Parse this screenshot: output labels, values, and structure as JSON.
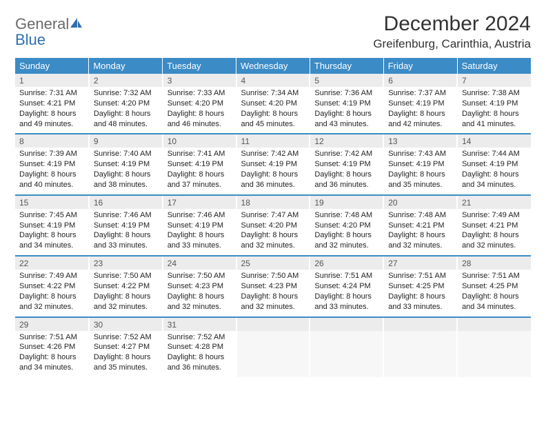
{
  "brand": {
    "general": "General",
    "blue": "Blue"
  },
  "title": "December 2024",
  "location": "Greifenburg, Carinthia, Austria",
  "colors": {
    "header_bg": "#3b8bc6",
    "header_text": "#ffffff",
    "daynum_bg": "#ececec",
    "daynum_text": "#555555",
    "body_text": "#222222",
    "accent_rule": "#3b8bc6",
    "logo_gray": "#6a6a6a",
    "logo_blue": "#2f6fad"
  },
  "typography": {
    "title_fontsize": 30,
    "location_fontsize": 17,
    "header_fontsize": 13,
    "daynum_fontsize": 12,
    "cell_fontsize": 11
  },
  "weekdays": [
    "Sunday",
    "Monday",
    "Tuesday",
    "Wednesday",
    "Thursday",
    "Friday",
    "Saturday"
  ],
  "weeks": [
    [
      {
        "n": "1",
        "sr": "Sunrise: 7:31 AM",
        "ss": "Sunset: 4:21 PM",
        "d1": "Daylight: 8 hours",
        "d2": "and 49 minutes."
      },
      {
        "n": "2",
        "sr": "Sunrise: 7:32 AM",
        "ss": "Sunset: 4:20 PM",
        "d1": "Daylight: 8 hours",
        "d2": "and 48 minutes."
      },
      {
        "n": "3",
        "sr": "Sunrise: 7:33 AM",
        "ss": "Sunset: 4:20 PM",
        "d1": "Daylight: 8 hours",
        "d2": "and 46 minutes."
      },
      {
        "n": "4",
        "sr": "Sunrise: 7:34 AM",
        "ss": "Sunset: 4:20 PM",
        "d1": "Daylight: 8 hours",
        "d2": "and 45 minutes."
      },
      {
        "n": "5",
        "sr": "Sunrise: 7:36 AM",
        "ss": "Sunset: 4:19 PM",
        "d1": "Daylight: 8 hours",
        "d2": "and 43 minutes."
      },
      {
        "n": "6",
        "sr": "Sunrise: 7:37 AM",
        "ss": "Sunset: 4:19 PM",
        "d1": "Daylight: 8 hours",
        "d2": "and 42 minutes."
      },
      {
        "n": "7",
        "sr": "Sunrise: 7:38 AM",
        "ss": "Sunset: 4:19 PM",
        "d1": "Daylight: 8 hours",
        "d2": "and 41 minutes."
      }
    ],
    [
      {
        "n": "8",
        "sr": "Sunrise: 7:39 AM",
        "ss": "Sunset: 4:19 PM",
        "d1": "Daylight: 8 hours",
        "d2": "and 40 minutes."
      },
      {
        "n": "9",
        "sr": "Sunrise: 7:40 AM",
        "ss": "Sunset: 4:19 PM",
        "d1": "Daylight: 8 hours",
        "d2": "and 38 minutes."
      },
      {
        "n": "10",
        "sr": "Sunrise: 7:41 AM",
        "ss": "Sunset: 4:19 PM",
        "d1": "Daylight: 8 hours",
        "d2": "and 37 minutes."
      },
      {
        "n": "11",
        "sr": "Sunrise: 7:42 AM",
        "ss": "Sunset: 4:19 PM",
        "d1": "Daylight: 8 hours",
        "d2": "and 36 minutes."
      },
      {
        "n": "12",
        "sr": "Sunrise: 7:42 AM",
        "ss": "Sunset: 4:19 PM",
        "d1": "Daylight: 8 hours",
        "d2": "and 36 minutes."
      },
      {
        "n": "13",
        "sr": "Sunrise: 7:43 AM",
        "ss": "Sunset: 4:19 PM",
        "d1": "Daylight: 8 hours",
        "d2": "and 35 minutes."
      },
      {
        "n": "14",
        "sr": "Sunrise: 7:44 AM",
        "ss": "Sunset: 4:19 PM",
        "d1": "Daylight: 8 hours",
        "d2": "and 34 minutes."
      }
    ],
    [
      {
        "n": "15",
        "sr": "Sunrise: 7:45 AM",
        "ss": "Sunset: 4:19 PM",
        "d1": "Daylight: 8 hours",
        "d2": "and 34 minutes."
      },
      {
        "n": "16",
        "sr": "Sunrise: 7:46 AM",
        "ss": "Sunset: 4:19 PM",
        "d1": "Daylight: 8 hours",
        "d2": "and 33 minutes."
      },
      {
        "n": "17",
        "sr": "Sunrise: 7:46 AM",
        "ss": "Sunset: 4:19 PM",
        "d1": "Daylight: 8 hours",
        "d2": "and 33 minutes."
      },
      {
        "n": "18",
        "sr": "Sunrise: 7:47 AM",
        "ss": "Sunset: 4:20 PM",
        "d1": "Daylight: 8 hours",
        "d2": "and 32 minutes."
      },
      {
        "n": "19",
        "sr": "Sunrise: 7:48 AM",
        "ss": "Sunset: 4:20 PM",
        "d1": "Daylight: 8 hours",
        "d2": "and 32 minutes."
      },
      {
        "n": "20",
        "sr": "Sunrise: 7:48 AM",
        "ss": "Sunset: 4:21 PM",
        "d1": "Daylight: 8 hours",
        "d2": "and 32 minutes."
      },
      {
        "n": "21",
        "sr": "Sunrise: 7:49 AM",
        "ss": "Sunset: 4:21 PM",
        "d1": "Daylight: 8 hours",
        "d2": "and 32 minutes."
      }
    ],
    [
      {
        "n": "22",
        "sr": "Sunrise: 7:49 AM",
        "ss": "Sunset: 4:22 PM",
        "d1": "Daylight: 8 hours",
        "d2": "and 32 minutes."
      },
      {
        "n": "23",
        "sr": "Sunrise: 7:50 AM",
        "ss": "Sunset: 4:22 PM",
        "d1": "Daylight: 8 hours",
        "d2": "and 32 minutes."
      },
      {
        "n": "24",
        "sr": "Sunrise: 7:50 AM",
        "ss": "Sunset: 4:23 PM",
        "d1": "Daylight: 8 hours",
        "d2": "and 32 minutes."
      },
      {
        "n": "25",
        "sr": "Sunrise: 7:50 AM",
        "ss": "Sunset: 4:23 PM",
        "d1": "Daylight: 8 hours",
        "d2": "and 32 minutes."
      },
      {
        "n": "26",
        "sr": "Sunrise: 7:51 AM",
        "ss": "Sunset: 4:24 PM",
        "d1": "Daylight: 8 hours",
        "d2": "and 33 minutes."
      },
      {
        "n": "27",
        "sr": "Sunrise: 7:51 AM",
        "ss": "Sunset: 4:25 PM",
        "d1": "Daylight: 8 hours",
        "d2": "and 33 minutes."
      },
      {
        "n": "28",
        "sr": "Sunrise: 7:51 AM",
        "ss": "Sunset: 4:25 PM",
        "d1": "Daylight: 8 hours",
        "d2": "and 34 minutes."
      }
    ],
    [
      {
        "n": "29",
        "sr": "Sunrise: 7:51 AM",
        "ss": "Sunset: 4:26 PM",
        "d1": "Daylight: 8 hours",
        "d2": "and 34 minutes."
      },
      {
        "n": "30",
        "sr": "Sunrise: 7:52 AM",
        "ss": "Sunset: 4:27 PM",
        "d1": "Daylight: 8 hours",
        "d2": "and 35 minutes."
      },
      {
        "n": "31",
        "sr": "Sunrise: 7:52 AM",
        "ss": "Sunset: 4:28 PM",
        "d1": "Daylight: 8 hours",
        "d2": "and 36 minutes."
      },
      {
        "n": "",
        "sr": "",
        "ss": "",
        "d1": "",
        "d2": ""
      },
      {
        "n": "",
        "sr": "",
        "ss": "",
        "d1": "",
        "d2": ""
      },
      {
        "n": "",
        "sr": "",
        "ss": "",
        "d1": "",
        "d2": ""
      },
      {
        "n": "",
        "sr": "",
        "ss": "",
        "d1": "",
        "d2": ""
      }
    ]
  ]
}
